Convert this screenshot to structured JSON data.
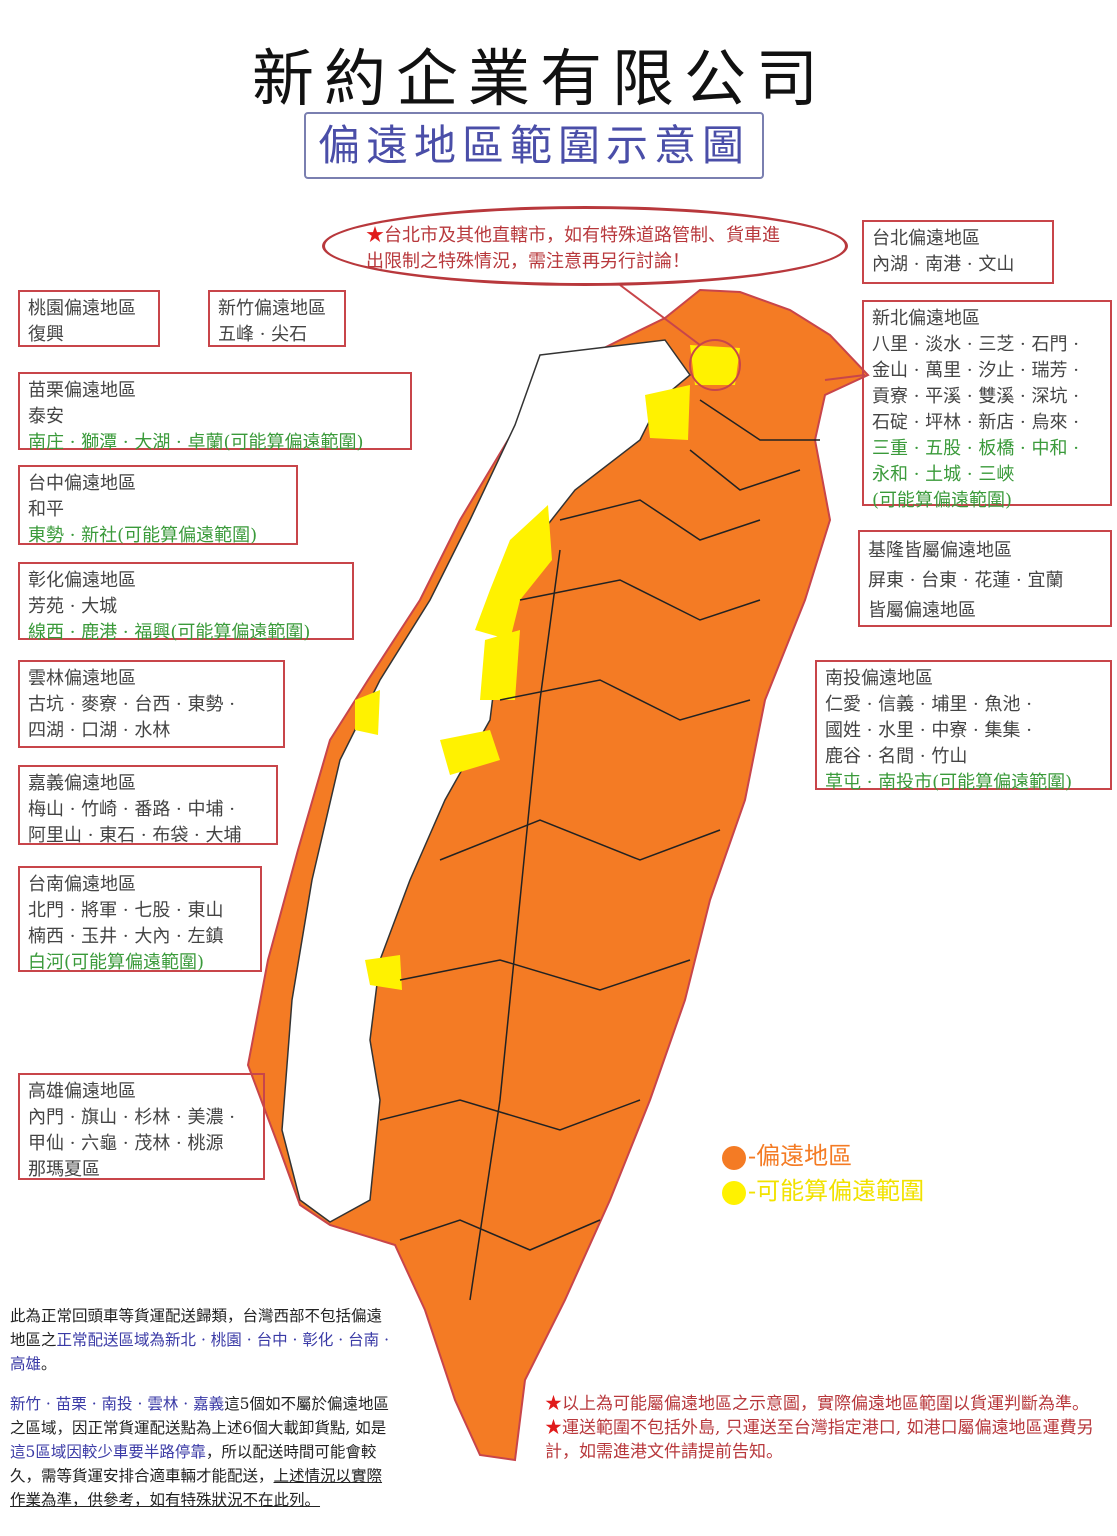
{
  "title": "新約企業有限公司",
  "subtitle": "偏遠地區範圍示意圖",
  "callout": {
    "star": "★",
    "line1": "台北市及其他直轄市，如有特殊道路管制、貨車進",
    "line2": "出限制之特殊情況，需注意再另行討論！"
  },
  "colors": {
    "remote": "#F47B24",
    "possible": "#FFF200",
    "border": "#C8454A",
    "possible_text": "#3A9A3A"
  },
  "regions": {
    "taoyuan": {
      "title": "桃園偏遠地區",
      "lines": [
        "復興"
      ],
      "possible": ""
    },
    "hsinchu": {
      "title": "新竹偏遠地區",
      "lines": [
        "五峰 · 尖石"
      ],
      "possible": ""
    },
    "miaoli": {
      "title": "苗栗偏遠地區",
      "lines": [
        "泰安"
      ],
      "possible": "南庄 · 獅潭 · 大湖 · 卓蘭(可能算偏遠範圍)"
    },
    "taichung": {
      "title": "台中偏遠地區",
      "lines": [
        "和平"
      ],
      "possible": "東勢 · 新社(可能算偏遠範圍)"
    },
    "changhua": {
      "title": "彰化偏遠地區",
      "lines": [
        "芳苑 · 大城"
      ],
      "possible": "線西 · 鹿港 · 福興(可能算偏遠範圍)"
    },
    "yunlin": {
      "title": "雲林偏遠地區",
      "lines": [
        "古坑 · 麥寮 · 台西 · 東勢 ·",
        "四湖 · 口湖 · 水林"
      ],
      "possible": ""
    },
    "chiayi": {
      "title": "嘉義偏遠地區",
      "lines": [
        "梅山 · 竹崎 · 番路 · 中埔 ·",
        "阿里山 · 東石 · 布袋 · 大埔"
      ],
      "possible": ""
    },
    "tainan": {
      "title": "台南偏遠地區",
      "lines": [
        "北門 · 將軍 · 七股 · 東山",
        "楠西 · 玉井 · 大內 · 左鎮"
      ],
      "possible": "白河(可能算偏遠範圍)"
    },
    "kaohsiung": {
      "title": "高雄偏遠地區",
      "lines": [
        "內門 · 旗山 · 杉林 · 美濃 ·",
        "甲仙 · 六龜 · 茂林 · 桃源",
        "那瑪夏區"
      ],
      "possible": ""
    },
    "taipei": {
      "title": "台北偏遠地區",
      "lines": [
        "內湖 · 南港 · 文山"
      ],
      "possible": ""
    },
    "newtaipei": {
      "title": "新北偏遠地區",
      "lines": [
        "八里 · 淡水 · 三芝 · 石門 ·",
        "金山 · 萬里 · 汐止 · 瑞芳 ·",
        "貢寮 · 平溪 · 雙溪 · 深坑 ·",
        "石碇 · 坪林 · 新店 · 烏來 ·"
      ],
      "possible_lines": [
        "三重 · 五股 · 板橋 · 中和 ·",
        "永和 · 土城 · 三峽",
        "(可能算偏遠範圍)"
      ]
    },
    "keelung": {
      "title": "基隆皆屬偏遠地區",
      "lines": [
        "屏東 · 台東 · 花蓮 · 宜蘭",
        "皆屬偏遠地區"
      ],
      "possible": ""
    },
    "nantou": {
      "title": "南投偏遠地區",
      "lines": [
        "仁愛 · 信義 · 埔里 · 魚池 ·",
        "國姓 · 水里 · 中寮 · 集集 ·",
        "鹿谷 · 名間 · 竹山"
      ],
      "possible": "草屯 · 南投市(可能算偏遠範圍)"
    }
  },
  "legend": {
    "remote": "-偏遠地區",
    "possible": "-可能算偏遠範圍"
  },
  "bottom_left": {
    "p1_a": "此為正常回頭車等貨運配送歸類，台灣西部不包括偏遠地區之",
    "p1_b": "正常配送區域為新北 · 桃園 · 台中 · 彰化 · 台南 · 高雄",
    "p1_c": "。",
    "p2_a": "新竹 · 苗栗 · 南投 · 雲林 · 嘉義",
    "p2_b": "這5個如不屬於偏遠地區之區域，因正常貨運配送點為上述6個大載卸貨點, 如是",
    "p2_c": "這5區域因較少車要半路停靠",
    "p2_d": "，所以配送時間可能會較久，需等貨運安排合適車輛才能配送，",
    "p2_e": "上述情況以實際作業為準，供參考，如有特殊狀況不在此列。"
  },
  "bottom_right": {
    "star": "★",
    "n1": "以上為可能屬偏遠地區之示意圖，實際偏遠地區範圍以貨運判斷為準。",
    "n2": "運送範圍不包括外島, 只運送至台灣指定港口, 如港口屬偏遠地區運費另計，如需進港文件請提前告知。"
  }
}
